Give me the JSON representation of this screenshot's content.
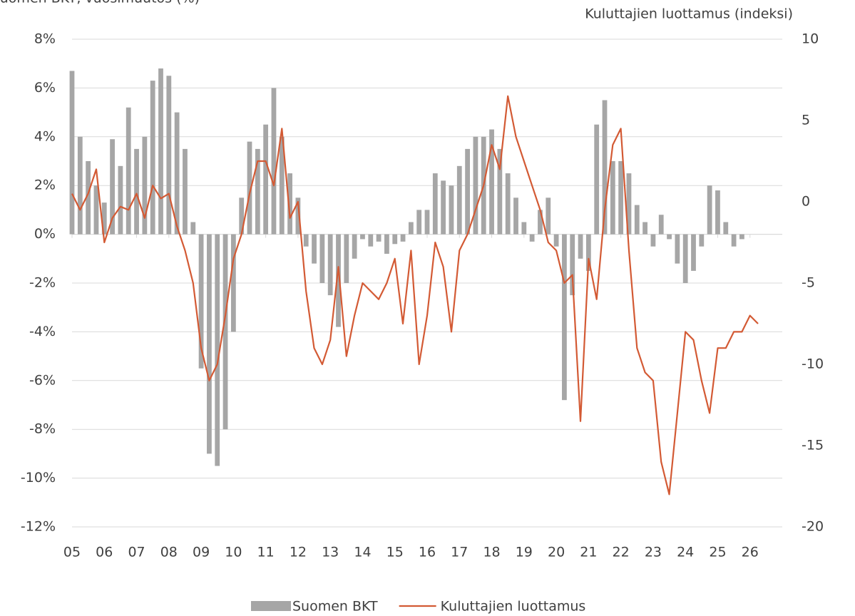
{
  "chart_data": {
    "type": "bar_line",
    "y_title": "Suomen BKT, vuosimuutos (%)",
    "y2_title": "Kuluttajien luottamus (indeksi)",
    "xlim": [
      2005,
      2027
    ],
    "xticks": [
      {
        "value": 2005,
        "label": "05"
      },
      {
        "value": 2006,
        "label": "06"
      },
      {
        "value": 2007,
        "label": "07"
      },
      {
        "value": 2008,
        "label": "08"
      },
      {
        "value": 2009,
        "label": "09"
      },
      {
        "value": 2010,
        "label": "10"
      },
      {
        "value": 2011,
        "label": "11"
      },
      {
        "value": 2012,
        "label": "12"
      },
      {
        "value": 2013,
        "label": "13"
      },
      {
        "value": 2014,
        "label": "14"
      },
      {
        "value": 2015,
        "label": "15"
      },
      {
        "value": 2016,
        "label": "16"
      },
      {
        "value": 2017,
        "label": "17"
      },
      {
        "value": 2018,
        "label": "18"
      },
      {
        "value": 2019,
        "label": "19"
      },
      {
        "value": 2020,
        "label": "20"
      },
      {
        "value": 2021,
        "label": "21"
      },
      {
        "value": 2022,
        "label": "22"
      },
      {
        "value": 2023,
        "label": "23"
      },
      {
        "value": 2024,
        "label": "24"
      },
      {
        "value": 2025,
        "label": "25"
      },
      {
        "value": 2026,
        "label": "26"
      }
    ],
    "ylim": [
      -12,
      8
    ],
    "yticks": [
      {
        "value": 8,
        "label": "8%"
      },
      {
        "value": 6,
        "label": "6%"
      },
      {
        "value": 4,
        "label": "4%"
      },
      {
        "value": 2,
        "label": "2%"
      },
      {
        "value": 0,
        "label": "0%"
      },
      {
        "value": -2,
        "label": "-2%"
      },
      {
        "value": -4,
        "label": "-4%"
      },
      {
        "value": -6,
        "label": "-6%"
      },
      {
        "value": -8,
        "label": "-8%"
      },
      {
        "value": -10,
        "label": "-10%"
      },
      {
        "value": -12,
        "label": "-12%"
      }
    ],
    "y2lim": [
      -20,
      10
    ],
    "y2ticks": [
      10,
      5,
      0,
      -5,
      -10,
      -15,
      -20
    ],
    "grid": true,
    "legend": "bottom",
    "series": [
      {
        "name": "Suomen BKT",
        "type": "bar",
        "color": "#a6a6a6",
        "x": [
          2005,
          2005.25,
          2005.5,
          2005.75,
          2006,
          2006.25,
          2006.5,
          2006.75,
          2007,
          2007.25,
          2007.5,
          2007.75,
          2008,
          2008.25,
          2008.5,
          2008.75,
          2009,
          2009.25,
          2009.5,
          2009.75,
          2010,
          2010.25,
          2010.5,
          2010.75,
          2011,
          2011.25,
          2011.5,
          2011.75,
          2012,
          2012.25,
          2012.5,
          2012.75,
          2013,
          2013.25,
          2013.5,
          2013.75,
          2014,
          2014.25,
          2014.5,
          2014.75,
          2015,
          2015.25,
          2015.5,
          2015.75,
          2016,
          2016.25,
          2016.5,
          2016.75,
          2017,
          2017.25,
          2017.5,
          2017.75,
          2018,
          2018.25,
          2018.5,
          2018.75,
          2019,
          2019.25,
          2019.5,
          2019.75,
          2020,
          2020.25,
          2020.5,
          2020.75,
          2021,
          2021.25,
          2021.5,
          2021.75,
          2022,
          2022.25,
          2022.5,
          2022.75,
          2023,
          2023.25,
          2023.5,
          2023.75,
          2024,
          2024.25,
          2024.5,
          2024.75,
          2025,
          2025.25,
          2025.5,
          2025.75
        ],
        "values": [
          6.7,
          4.0,
          3.0,
          2.0,
          1.3,
          3.9,
          2.8,
          5.2,
          3.5,
          4.0,
          6.3,
          6.8,
          6.5,
          5.0,
          3.5,
          0.5,
          -5.5,
          -9.0,
          -9.5,
          -8.0,
          -4.0,
          1.5,
          3.8,
          3.5,
          4.5,
          6.0,
          4.0,
          2.5,
          1.5,
          -0.5,
          -1.2,
          -2.0,
          -2.5,
          -3.8,
          -2.0,
          -1.0,
          -0.2,
          -0.5,
          -0.3,
          -0.8,
          -0.4,
          -0.3,
          0.5,
          1.0,
          1.0,
          2.5,
          2.2,
          2.0,
          2.8,
          3.5,
          4.0,
          4.0,
          4.3,
          3.5,
          2.5,
          1.5,
          0.5,
          -0.3,
          1.0,
          1.5,
          -0.5,
          -6.8,
          -2.5,
          -1.0,
          -1.5,
          4.5,
          5.5,
          3.0,
          3.0,
          2.5,
          1.2,
          0.5,
          -0.5,
          0.8,
          -0.2,
          -1.2,
          -2.0,
          -1.5,
          -0.5,
          2.0,
          1.8,
          0.5,
          -0.5,
          -0.2
        ]
      },
      {
        "name": "Kuluttajien luottamus",
        "type": "line",
        "axis": "y2",
        "color": "#d35a34",
        "x": [
          2005,
          2005.25,
          2005.5,
          2005.75,
          2006,
          2006.25,
          2006.5,
          2006.75,
          2007,
          2007.25,
          2007.5,
          2007.75,
          2008,
          2008.25,
          2008.5,
          2008.75,
          2009,
          2009.25,
          2009.5,
          2009.75,
          2010,
          2010.25,
          2010.5,
          2010.75,
          2011,
          2011.25,
          2011.5,
          2011.75,
          2012,
          2012.25,
          2012.5,
          2012.75,
          2013,
          2013.25,
          2013.5,
          2013.75,
          2014,
          2014.25,
          2014.5,
          2014.75,
          2015,
          2015.25,
          2015.5,
          2015.75,
          2016,
          2016.25,
          2016.5,
          2016.75,
          2017,
          2017.25,
          2017.5,
          2017.75,
          2018,
          2018.25,
          2018.5,
          2018.75,
          2019,
          2019.25,
          2019.5,
          2019.75,
          2020,
          2020.25,
          2020.5,
          2020.75,
          2021,
          2021.25,
          2021.5,
          2021.75,
          2022,
          2022.25,
          2022.5,
          2022.75,
          2023,
          2023.25,
          2023.5,
          2023.75,
          2024,
          2024.25,
          2024.5,
          2024.75,
          2025,
          2025.25,
          2025.5,
          2025.75,
          2026,
          2026.25
        ],
        "values": [
          0.5,
          -0.5,
          0.5,
          2.0,
          -2.5,
          -1.0,
          -0.3,
          -0.5,
          0.5,
          -1.0,
          1.0,
          0.2,
          0.5,
          -1.5,
          -3.0,
          -5.0,
          -9.0,
          -11.0,
          -10.0,
          -7.0,
          -3.5,
          -2.0,
          0.5,
          2.5,
          2.5,
          1.0,
          4.5,
          -1.0,
          0.0,
          -5.5,
          -9.0,
          -10.0,
          -8.5,
          -4.0,
          -9.5,
          -7.0,
          -5.0,
          -5.5,
          -6.0,
          -5.0,
          -3.5,
          -7.5,
          -3.0,
          -10.0,
          -7.0,
          -2.5,
          -4.0,
          -8.0,
          -3.0,
          -2.0,
          -0.5,
          1.0,
          3.5,
          2.0,
          6.5,
          4.0,
          2.5,
          1.0,
          -0.5,
          -2.5,
          -3.0,
          -5.0,
          -4.5,
          -13.5,
          -3.5,
          -6.0,
          -0.5,
          3.5,
          4.5,
          -3.0,
          -9.0,
          -10.5,
          -11.0,
          -16.0,
          -18.0,
          -13.0,
          -8.0,
          -8.5,
          -11.0,
          -13.0,
          -9.0,
          -9.0,
          -8.0,
          -8.0,
          -7.0,
          -7.5
        ]
      }
    ]
  }
}
